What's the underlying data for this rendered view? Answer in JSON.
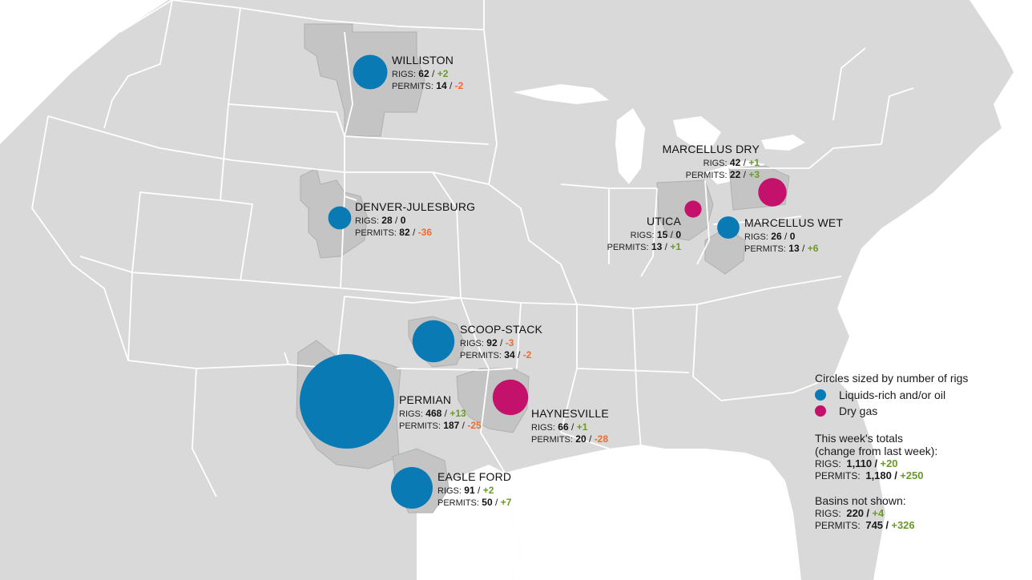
{
  "colors": {
    "oil": "#0a7ab5",
    "gas": "#c4116b",
    "positive": "#6a9a2a",
    "negative": "#f06b2b",
    "land": "#d9d9d9",
    "basin": "#c4c4c4",
    "border": "#ffffff"
  },
  "basins": [
    {
      "name": "WILLISTON",
      "type": "oil",
      "rigs": "62",
      "rigs_change": "+2",
      "permits": "14",
      "permits_change": "-2"
    },
    {
      "name": "DENVER-JULESBURG",
      "type": "oil",
      "rigs": "28",
      "rigs_change": "0",
      "permits": "82",
      "permits_change": "-36"
    },
    {
      "name": "MARCELLUS DRY",
      "type": "gas",
      "rigs": "42",
      "rigs_change": "+1",
      "permits": "22",
      "permits_change": "+3"
    },
    {
      "name": "UTICA",
      "type": "gas",
      "rigs": "15",
      "rigs_change": "0",
      "permits": "13",
      "permits_change": "+1"
    },
    {
      "name": "MARCELLUS WET",
      "type": "oil",
      "rigs": "26",
      "rigs_change": "0",
      "permits": "13",
      "permits_change": "+6"
    },
    {
      "name": "SCOOP-STACK",
      "type": "oil",
      "rigs": "92",
      "rigs_change": "-3",
      "permits": "34",
      "permits_change": "-2"
    },
    {
      "name": "PERMIAN",
      "type": "oil",
      "rigs": "468",
      "rigs_change": "+13",
      "permits": "187",
      "permits_change": "-25"
    },
    {
      "name": "HAYNESVILLE",
      "type": "gas",
      "rigs": "66",
      "rigs_change": "+1",
      "permits": "20",
      "permits_change": "-28"
    },
    {
      "name": "EAGLE FORD",
      "type": "oil",
      "rigs": "91",
      "rigs_change": "+2",
      "permits": "50",
      "permits_change": "+7"
    }
  ],
  "labels": {
    "rigs": "RIGS:",
    "permits": "PERMITS:",
    "slash": "/"
  },
  "legend": {
    "title": "Circles sized by number of rigs",
    "oil_label": "Liquids-rich and/or oil",
    "gas_label": "Dry gas",
    "totals_title_1": "This week's totals",
    "totals_title_2": "(change from last week):",
    "totals_rigs": "1,110",
    "totals_rigs_change": "+20",
    "totals_permits": "1,180",
    "totals_permits_change": "+250",
    "not_shown_title": "Basins not shown:",
    "not_shown_rigs": "220",
    "not_shown_rigs_change": "+4",
    "not_shown_permits": "745",
    "not_shown_permits_change": "+326"
  }
}
